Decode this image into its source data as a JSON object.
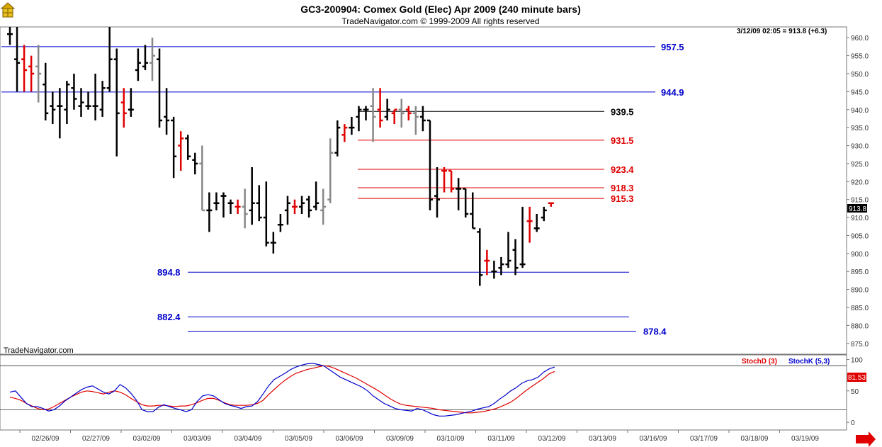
{
  "header": {
    "title": "GC3-200904:  Comex Gold (Elec) Apr 2009  (240 minute bars)",
    "copyright": "TradeNavigator.com © 1999-2009 All rights reserved"
  },
  "watermark": "TradeNavigator.com",
  "last_bar_info": "3/12/09 02:05 = 913.8 (+6.3)",
  "last_price_tag": "913.8",
  "colors": {
    "up": "#000000",
    "down": "#e00000",
    "neutral": "#888888",
    "blue": "#0000cc",
    "red": "#e00000"
  },
  "chart_data": [
    {
      "type": "ohlc",
      "title": "GC3-200904:  Comex Gold (Elec) Apr 2009  (240 minute bars)",
      "ylim": [
        872,
        963
      ],
      "y_ticks": [
        "960.0",
        "955.0",
        "950.0",
        "945.0",
        "940.0",
        "935.0",
        "930.0",
        "925.0",
        "920.0",
        "915.0",
        "910.0",
        "905.0",
        "900.0",
        "895.0",
        "890.0",
        "885.0",
        "880.0",
        "875.0"
      ],
      "x_dates": [
        "02/26/09",
        "02/27/09",
        "03/02/09",
        "03/03/09",
        "03/04/09",
        "03/05/09",
        "03/06/09",
        "03/09/09",
        "03/10/09",
        "03/11/09",
        "03/12/09",
        "03/13/09",
        "03/16/09",
        "03/17/09",
        "03/18/09",
        "03/19/09"
      ],
      "bars": [
        {
          "h": 963,
          "l": 958,
          "o": 961,
          "c": 961,
          "col": "up"
        },
        {
          "h": 963,
          "l": 945,
          "o": 954,
          "c": 953,
          "col": "up"
        },
        {
          "h": 958,
          "l": 945,
          "o": 954,
          "c": 951,
          "col": "down"
        },
        {
          "h": 955,
          "l": 945,
          "o": 952,
          "c": 950,
          "col": "down"
        },
        {
          "h": 958,
          "l": 942,
          "o": 952,
          "c": 950,
          "col": "neutral"
        },
        {
          "h": 953,
          "l": 937,
          "o": 947,
          "c": 939,
          "col": "up"
        },
        {
          "h": 945,
          "l": 936,
          "o": 941,
          "c": 940,
          "col": "up"
        },
        {
          "h": 946,
          "l": 932,
          "o": 941,
          "c": 941,
          "col": "up"
        },
        {
          "h": 948,
          "l": 936,
          "o": 940,
          "c": 947,
          "col": "up"
        },
        {
          "h": 950,
          "l": 940,
          "o": 946,
          "c": 943,
          "col": "up"
        },
        {
          "h": 946,
          "l": 938,
          "o": 941,
          "c": 942,
          "col": "up"
        },
        {
          "h": 945,
          "l": 940,
          "o": 941,
          "c": 941,
          "col": "up"
        },
        {
          "h": 950,
          "l": 937,
          "o": 941,
          "c": 941,
          "col": "up"
        },
        {
          "h": 948,
          "l": 938,
          "o": 940,
          "c": 946,
          "col": "up"
        },
        {
          "h": 963,
          "l": 945,
          "o": 946,
          "c": 954,
          "col": "up"
        },
        {
          "h": 957,
          "l": 927,
          "o": 954,
          "c": 939,
          "col": "up"
        },
        {
          "h": 946,
          "l": 935,
          "o": 942,
          "c": 939,
          "col": "down"
        },
        {
          "h": 946,
          "l": 938,
          "o": 940,
          "c": 940,
          "col": "up"
        },
        {
          "h": 957,
          "l": 948,
          "o": 951,
          "c": 953,
          "col": "up"
        },
        {
          "h": 958,
          "l": 951,
          "o": 952,
          "c": 953,
          "col": "up"
        },
        {
          "h": 960,
          "l": 948,
          "o": 953,
          "c": 955,
          "col": "neutral"
        },
        {
          "h": 957,
          "l": 935,
          "o": 954,
          "c": 937,
          "col": "up"
        },
        {
          "h": 946,
          "l": 933,
          "o": 938,
          "c": 937,
          "col": "up"
        },
        {
          "h": 938,
          "l": 921,
          "o": 937,
          "c": 927,
          "col": "up"
        },
        {
          "h": 934,
          "l": 923,
          "o": 930,
          "c": 932,
          "col": "down"
        },
        {
          "h": 933,
          "l": 926,
          "o": 932,
          "c": 927,
          "col": "up"
        },
        {
          "h": 928,
          "l": 922,
          "o": 926,
          "c": 925,
          "col": "up"
        },
        {
          "h": 930,
          "l": 912,
          "o": 925,
          "c": 912,
          "col": "neutral"
        },
        {
          "h": 917,
          "l": 906,
          "o": 912,
          "c": 912,
          "col": "up"
        },
        {
          "h": 917,
          "l": 912,
          "o": 914,
          "c": 914,
          "col": "up"
        },
        {
          "h": 917,
          "l": 910,
          "o": 916,
          "c": 916,
          "col": "up"
        },
        {
          "h": 915,
          "l": 911,
          "o": 914,
          "c": 914,
          "col": "up"
        },
        {
          "h": 915,
          "l": 911,
          "o": 913,
          "c": 913,
          "col": "down"
        },
        {
          "h": 918,
          "l": 907,
          "o": 913,
          "c": 911,
          "col": "neutral"
        },
        {
          "h": 924,
          "l": 908,
          "o": 912,
          "c": 914,
          "col": "up"
        },
        {
          "h": 919,
          "l": 909,
          "o": 914,
          "c": 910,
          "col": "up"
        },
        {
          "h": 920,
          "l": 902,
          "o": 910,
          "c": 903,
          "col": "up"
        },
        {
          "h": 906,
          "l": 900,
          "o": 903,
          "c": 903,
          "col": "up"
        },
        {
          "h": 911,
          "l": 906,
          "o": 908,
          "c": 908,
          "col": "up"
        },
        {
          "h": 916,
          "l": 908,
          "o": 912,
          "c": 914,
          "col": "up"
        },
        {
          "h": 915,
          "l": 911,
          "o": 913,
          "c": 913,
          "col": "down"
        },
        {
          "h": 916,
          "l": 911,
          "o": 913,
          "c": 914,
          "col": "up"
        },
        {
          "h": 916,
          "l": 910,
          "o": 915,
          "c": 912,
          "col": "up"
        },
        {
          "h": 920,
          "l": 912,
          "o": 913,
          "c": 914,
          "col": "up"
        },
        {
          "h": 918,
          "l": 908,
          "o": 912,
          "c": 913,
          "col": "neutral"
        },
        {
          "h": 932,
          "l": 914,
          "o": 915,
          "c": 928,
          "col": "neutral"
        },
        {
          "h": 937,
          "l": 927,
          "o": 928,
          "c": 935,
          "col": "up"
        },
        {
          "h": 936,
          "l": 931,
          "o": 933,
          "c": 935,
          "col": "down"
        },
        {
          "h": 938,
          "l": 933,
          "o": 935,
          "c": 935,
          "col": "up"
        },
        {
          "h": 941,
          "l": 934,
          "o": 938,
          "c": 940,
          "col": "up"
        },
        {
          "h": 941,
          "l": 937,
          "o": 940,
          "c": 940,
          "col": "up"
        },
        {
          "h": 946,
          "l": 931,
          "o": 941,
          "c": 938,
          "col": "neutral"
        },
        {
          "h": 946,
          "l": 935,
          "o": 940,
          "c": 937,
          "col": "down"
        },
        {
          "h": 943,
          "l": 937,
          "o": 938,
          "c": 940,
          "col": "up"
        },
        {
          "h": 940,
          "l": 936,
          "o": 939,
          "c": 940,
          "col": "down"
        },
        {
          "h": 943,
          "l": 935,
          "o": 940,
          "c": 939,
          "col": "neutral"
        },
        {
          "h": 941,
          "l": 937,
          "o": 940,
          "c": 939,
          "col": "down"
        },
        {
          "h": 941,
          "l": 933,
          "o": 939,
          "c": 938,
          "col": "neutral"
        },
        {
          "h": 941,
          "l": 934,
          "o": 938,
          "c": 937,
          "col": "up"
        },
        {
          "h": 937,
          "l": 912,
          "o": 937,
          "c": 915,
          "col": "up"
        },
        {
          "h": 924,
          "l": 910,
          "o": 916,
          "c": 915,
          "col": "up"
        },
        {
          "h": 924,
          "l": 917,
          "o": 923,
          "c": 923,
          "col": "down"
        },
        {
          "h": 923,
          "l": 917,
          "o": 923,
          "c": 918,
          "col": "down"
        },
        {
          "h": 921,
          "l": 912,
          "o": 918,
          "c": 918,
          "col": "up"
        },
        {
          "h": 918,
          "l": 910,
          "o": 918,
          "c": 911,
          "col": "up"
        },
        {
          "h": 917,
          "l": 907,
          "o": 911,
          "c": 907,
          "col": "up"
        },
        {
          "h": 907,
          "l": 891,
          "o": 906,
          "c": 894,
          "col": "up"
        },
        {
          "h": 901,
          "l": 894,
          "o": 898,
          "c": 898,
          "col": "down"
        },
        {
          "h": 898,
          "l": 893,
          "o": 895,
          "c": 895,
          "col": "up"
        },
        {
          "h": 899,
          "l": 894,
          "o": 896,
          "c": 897,
          "col": "up"
        },
        {
          "h": 906,
          "l": 896,
          "o": 897,
          "c": 898,
          "col": "up"
        },
        {
          "h": 904,
          "l": 894,
          "o": 901,
          "c": 896,
          "col": "up"
        },
        {
          "h": 913,
          "l": 896,
          "o": 897,
          "c": 897,
          "col": "up"
        },
        {
          "h": 913,
          "l": 903,
          "o": 909,
          "c": 909,
          "col": "down"
        },
        {
          "h": 911,
          "l": 906,
          "o": 907,
          "c": 907,
          "col": "up"
        },
        {
          "h": 913,
          "l": 909,
          "o": 910,
          "c": 912,
          "col": "up"
        },
        {
          "h": 914,
          "l": 913,
          "o": 914,
          "c": 914,
          "col": "down"
        }
      ],
      "levels": [
        {
          "value": 957.5,
          "label": "957.5",
          "color": "blue"
        },
        {
          "value": 944.9,
          "label": "944.9",
          "color": "blue"
        },
        {
          "value": 939.5,
          "label": "939.5",
          "color": "black"
        },
        {
          "value": 931.5,
          "label": "931.5",
          "color": "red"
        },
        {
          "value": 923.4,
          "label": "923.4",
          "color": "red"
        },
        {
          "value": 918.3,
          "label": "918.3",
          "color": "red"
        },
        {
          "value": 915.3,
          "label": "915.3",
          "color": "red"
        },
        {
          "value": 894.8,
          "label": "894.8",
          "color": "blue"
        },
        {
          "value": 882.4,
          "label": "882.4",
          "color": "blue"
        },
        {
          "value": 878.4,
          "label": "878.4",
          "color": "blue"
        }
      ]
    },
    {
      "type": "line",
      "ylim": [
        -10,
        105
      ],
      "y_ticks": [
        "100",
        "50",
        "0"
      ],
      "reference_levels": [
        90,
        20
      ],
      "series": [
        {
          "name": "StochD (3)",
          "color": "red",
          "values": [
            40,
            38,
            35,
            30,
            26,
            22,
            20,
            21,
            25,
            30,
            35,
            40,
            44,
            48,
            50,
            49,
            47,
            45,
            48,
            50,
            48,
            44,
            38,
            33,
            28,
            26,
            26,
            27,
            27,
            26,
            25,
            26,
            26,
            28,
            31,
            35,
            38,
            38,
            35,
            31,
            28,
            27,
            27,
            27,
            28,
            30,
            35,
            44,
            52,
            60,
            67,
            73,
            78,
            81,
            84,
            86,
            88,
            90,
            89,
            86,
            82,
            78,
            74,
            70,
            65,
            60,
            55,
            50,
            44,
            38,
            33,
            29,
            27,
            26,
            25,
            24,
            23,
            22,
            20,
            19,
            18,
            17,
            16,
            15,
            15,
            16,
            17,
            19,
            21,
            24,
            28,
            32,
            38,
            45,
            52,
            58,
            64,
            70,
            77,
            81
          ]
        },
        {
          "name": "StochK (5,3)",
          "color": "blue",
          "values": [
            48,
            50,
            40,
            30,
            25,
            25,
            22,
            18,
            20,
            26,
            34,
            40,
            46,
            52,
            56,
            58,
            53,
            48,
            45,
            50,
            60,
            55,
            46,
            35,
            20,
            17,
            17,
            24,
            28,
            25,
            22,
            20,
            17,
            20,
            33,
            42,
            44,
            42,
            36,
            30,
            27,
            25,
            22,
            25,
            26,
            33,
            45,
            58,
            68,
            73,
            78,
            84,
            88,
            91,
            93,
            94,
            92,
            90,
            84,
            78,
            72,
            68,
            64,
            60,
            56,
            50,
            42,
            36,
            30,
            26,
            22,
            20,
            19,
            18,
            22,
            20,
            16,
            12,
            10,
            10,
            11,
            12,
            14,
            16,
            18,
            21,
            23,
            25,
            30,
            37,
            43,
            50,
            55,
            62,
            66,
            68,
            72,
            80,
            85,
            88
          ]
        }
      ]
    }
  ]
}
